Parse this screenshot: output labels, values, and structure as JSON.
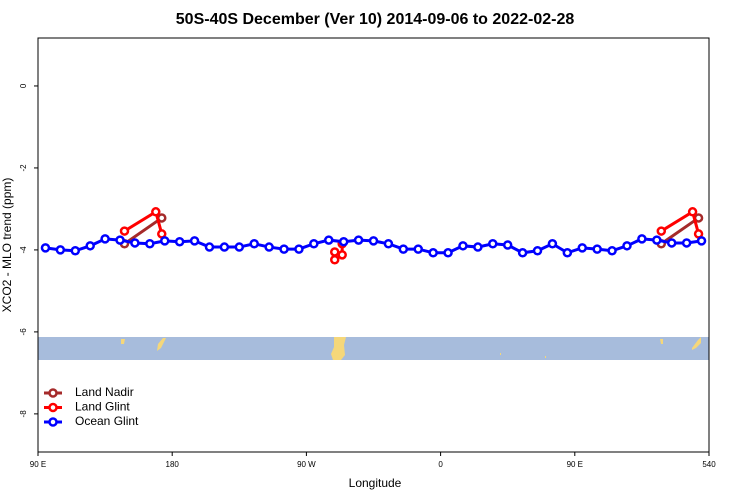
{
  "chart_data": {
    "type": "line",
    "title": "50S-40S December (Ver 10)   2014-09-06 to 2022-02-28",
    "xlabel": "Longitude",
    "ylabel": "XCO2 - MLO trend (ppm)",
    "xlim": [
      90,
      540
    ],
    "ylim": [
      -8.93,
      1.17
    ],
    "xticks": [
      {
        "value": 90,
        "label": "90 E"
      },
      180,
      {
        "value": 270,
        "label": "90 W"
      },
      {
        "value": 360,
        "label": "0"
      },
      {
        "value": 450,
        "label": "90 E"
      },
      540
    ],
    "yticks": [
      0,
      -2,
      -4,
      -6,
      -8
    ],
    "legend": "bottom-left",
    "series": [
      {
        "name": "Land Nadir",
        "color": "#a52a2a",
        "x": [
          148,
          173,
          null,
          508,
          533
        ],
        "values": [
          -3.85,
          -3.22,
          null,
          -3.85,
          -3.22
        ]
      },
      {
        "name": "Land Glint",
        "color": "#ff0000",
        "x": [
          148,
          169,
          173,
          null,
          289,
          289,
          null,
          294,
          294,
          null,
          508,
          529,
          533
        ],
        "values": [
          -3.54,
          -3.07,
          -3.61,
          null,
          -4.05,
          -4.24,
          null,
          -3.85,
          -4.12,
          null,
          -3.54,
          -3.07,
          -3.61
        ]
      },
      {
        "name": "Ocean Glint",
        "color": "#0000ff",
        "x": [
          95,
          105,
          115,
          125,
          135,
          145,
          155,
          165,
          175,
          185,
          195,
          205,
          215,
          225,
          235,
          245,
          255,
          265,
          275,
          285,
          295,
          305,
          315,
          325,
          335,
          345,
          355,
          365,
          375,
          385,
          395,
          405,
          415,
          425,
          435,
          445,
          455,
          465,
          475,
          485,
          495,
          505,
          515,
          525,
          535
        ],
        "values": [
          -3.95,
          -4.0,
          -4.02,
          -3.9,
          -3.73,
          -3.76,
          -3.83,
          -3.85,
          -3.78,
          -3.8,
          -3.78,
          -3.93,
          -3.93,
          -3.93,
          -3.85,
          -3.93,
          -3.98,
          -3.98,
          -3.85,
          -3.76,
          -3.8,
          -3.76,
          -3.78,
          -3.85,
          -3.98,
          -3.98,
          -4.07,
          -4.07,
          -3.9,
          -3.93,
          -3.85,
          -3.88,
          -4.07,
          -4.02,
          -3.85,
          -4.07,
          -3.95,
          -3.98,
          -4.02,
          -3.9,
          -3.73,
          -3.76,
          -3.83,
          -3.83,
          -3.78
        ]
      }
    ]
  }
}
